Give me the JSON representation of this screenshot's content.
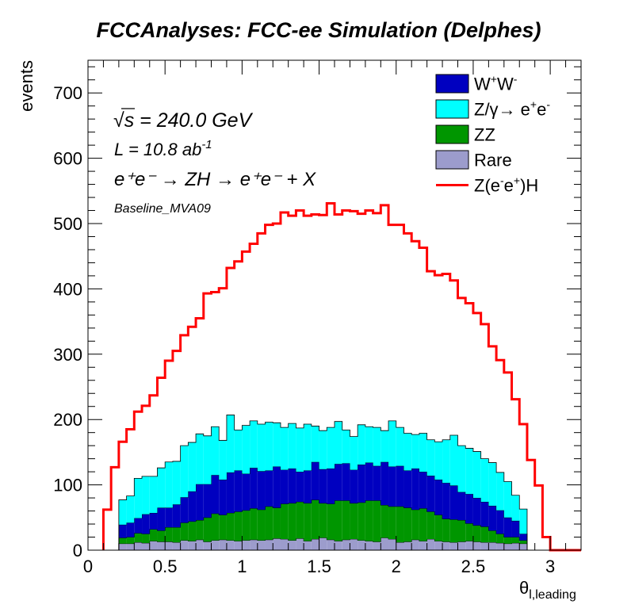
{
  "chart_data": {
    "type": "stacked-histogram",
    "title": "FCCAnalyses: FCC-ee Simulation (Delphes)",
    "xlabel_main": "θ",
    "xlabel_sub": "l,leading",
    "ylabel": "events",
    "xlim": [
      0,
      3.2
    ],
    "ylim": [
      0,
      750
    ],
    "x_ticks": [
      0,
      0.5,
      1,
      1.5,
      2,
      2.5,
      3
    ],
    "x_tick_labels": [
      "0",
      "0.5",
      "1",
      "1.5",
      "2",
      "2.5",
      "3"
    ],
    "y_ticks": [
      0,
      100,
      200,
      300,
      400,
      500,
      600,
      700
    ],
    "y_tick_labels": [
      "0",
      "100",
      "200",
      "300",
      "400",
      "500",
      "600",
      "700"
    ],
    "bin_edges": [
      0.1,
      0.15,
      0.2,
      0.25,
      0.3,
      0.35,
      0.4,
      0.45,
      0.5,
      0.55,
      0.6,
      0.65,
      0.7,
      0.75,
      0.8,
      0.85,
      0.9,
      0.95,
      1.0,
      1.05,
      1.1,
      1.15,
      1.2,
      1.25,
      1.3,
      1.35,
      1.4,
      1.45,
      1.5,
      1.55,
      1.6,
      1.65,
      1.7,
      1.75,
      1.8,
      1.85,
      1.9,
      1.95,
      2.0,
      2.05,
      2.1,
      2.15,
      2.2,
      2.25,
      2.3,
      2.35,
      2.4,
      2.45,
      2.5,
      2.55,
      2.6,
      2.65,
      2.7,
      2.75,
      2.8,
      2.85,
      2.9,
      2.95,
      3.0,
      3.05,
      3.1,
      3.15,
      3.2
    ],
    "annotations": {
      "sqrt_symbol": "√",
      "sqrt_text": "s = 240.0 GeV",
      "lumi_text": "L = 10.8 ab",
      "lumi_sup": "-1",
      "process_text": "e⁺e⁻ → ZH → e⁺e⁻ + X",
      "selection": "Baseline_MVA09"
    },
    "series": [
      {
        "name": "Rare",
        "color": "#9c9ccc",
        "values": [
          0,
          0,
          10,
          10,
          12,
          11,
          14,
          13,
          13,
          12,
          15,
          14,
          16,
          13,
          15,
          16,
          15,
          14,
          15,
          16,
          15,
          16,
          18,
          17,
          15,
          18,
          14,
          17,
          19,
          16,
          14,
          16,
          17,
          15,
          14,
          13,
          19,
          17,
          12,
          13,
          16,
          14,
          17,
          14,
          13,
          12,
          13,
          14,
          13,
          12,
          12,
          11,
          10,
          11,
          10,
          0,
          0,
          0,
          0,
          0,
          0,
          0
        ]
      },
      {
        "name": "ZZ",
        "color": "#009600",
        "values": [
          0,
          0,
          9,
          10,
          14,
          14,
          18,
          17,
          22,
          23,
          27,
          30,
          30,
          37,
          41,
          38,
          42,
          45,
          46,
          48,
          47,
          51,
          47,
          54,
          57,
          56,
          58,
          60,
          53,
          55,
          62,
          60,
          55,
          58,
          62,
          63,
          50,
          50,
          55,
          52,
          46,
          50,
          42,
          40,
          35,
          35,
          33,
          27,
          25,
          24,
          18,
          14,
          10,
          9,
          5,
          0,
          0,
          0,
          0,
          0,
          0,
          0
        ]
      },
      {
        "name": "W⁺W⁻",
        "color": "#0000c0",
        "values": [
          0,
          0,
          20,
          22,
          23,
          30,
          25,
          35,
          30,
          35,
          39,
          46,
          55,
          51,
          59,
          54,
          62,
          63,
          56,
          62,
          59,
          55,
          63,
          52,
          53,
          46,
          50,
          58,
          52,
          54,
          56,
          57,
          51,
          58,
          58,
          53,
          66,
          61,
          62,
          57,
          63,
          56,
          55,
          54,
          55,
          52,
          43,
          45,
          42,
          38,
          38,
          36,
          30,
          25,
          10,
          0,
          0,
          0,
          0,
          0,
          0,
          0
        ]
      },
      {
        "name": "Z/γ→ e⁺e⁻",
        "color": "#00ffff",
        "values": [
          0,
          0,
          38,
          41,
          61,
          58,
          56,
          61,
          70,
          66,
          79,
          75,
          77,
          74,
          74,
          60,
          88,
          62,
          74,
          72,
          72,
          74,
          67,
          65,
          69,
          67,
          71,
          55,
          59,
          63,
          65,
          51,
          51,
          61,
          55,
          59,
          48,
          70,
          59,
          57,
          52,
          59,
          55,
          58,
          66,
          77,
          71,
          70,
          71,
          66,
          66,
          58,
          55,
          39,
          38,
          0,
          0,
          0,
          0,
          0,
          0,
          0
        ]
      },
      {
        "name": "Z(e⁻e⁺)H",
        "color": "#ff0000",
        "type": "line",
        "values": [
          62,
          127,
          166,
          185,
          212,
          221,
          237,
          264,
          290,
          305,
          329,
          342,
          355,
          393,
          395,
          401,
          432,
          442,
          457,
          469,
          485,
          498,
          500,
          517,
          512,
          520,
          512,
          514,
          513,
          531,
          514,
          520,
          519,
          515,
          520,
          516,
          528,
          498,
          498,
          485,
          473,
          463,
          427,
          421,
          423,
          413,
          386,
          378,
          363,
          346,
          312,
          291,
          272,
          231,
          193,
          138,
          99,
          20,
          0,
          0,
          0,
          0
        ]
      }
    ],
    "legend": {
      "placement": "top-right",
      "entries": [
        {
          "label_main": "W",
          "label_sup1": "+",
          "label_mid": "W",
          "label_sup2": "-",
          "color": "#0000c0",
          "kind": "fill"
        },
        {
          "label_main": "Z/γ→ e",
          "label_sup1": "+",
          "label_mid": "e",
          "label_sup2": "-",
          "color": "#00ffff",
          "kind": "fill"
        },
        {
          "label_main": "ZZ",
          "label_sup1": "",
          "label_mid": "",
          "label_sup2": "",
          "color": "#009600",
          "kind": "fill"
        },
        {
          "label_main": "Rare",
          "label_sup1": "",
          "label_mid": "",
          "label_sup2": "",
          "color": "#9c9ccc",
          "kind": "fill"
        },
        {
          "label_main": "Z(e",
          "label_sup1": "-",
          "label_mid": "e",
          "label_sup2": "+",
          "label_end": ")H",
          "color": "#ff0000",
          "kind": "line"
        }
      ]
    },
    "grid": false
  }
}
